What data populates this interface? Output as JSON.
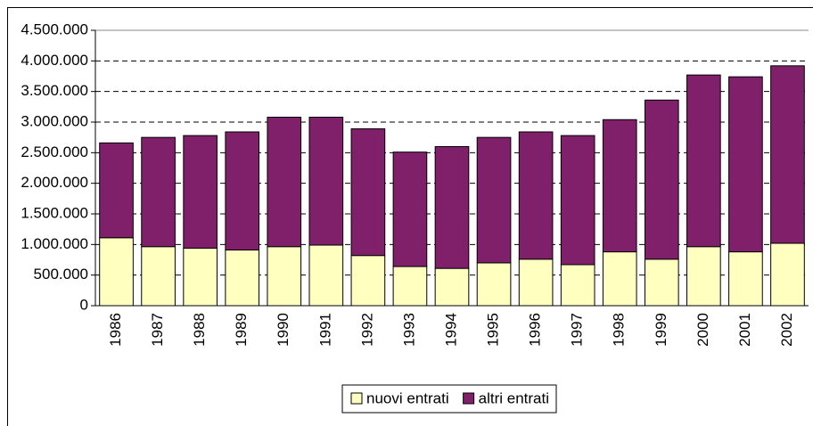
{
  "chart_data": {
    "type": "stacked_bar",
    "categories": [
      "1986",
      "1987",
      "1988",
      "1989",
      "1990",
      "1991",
      "1992",
      "1993",
      "1994",
      "1995",
      "1996",
      "1997",
      "1998",
      "1999",
      "2000",
      "2001",
      "2002"
    ],
    "series": [
      {
        "name": "nuovi entrati",
        "color": "#ffffc0",
        "values": [
          1110000,
          965000,
          940000,
          910000,
          965000,
          990000,
          820000,
          640000,
          610000,
          700000,
          760000,
          670000,
          880000,
          760000,
          965000,
          880000,
          1020000
        ]
      },
      {
        "name": "altri entrati",
        "color": "#80206a",
        "values": [
          1550000,
          1785000,
          1840000,
          1930000,
          2115000,
          2090000,
          2070000,
          1870000,
          1990000,
          2050000,
          2080000,
          2110000,
          2160000,
          2600000,
          2805000,
          2860000,
          2900000
        ]
      }
    ],
    "ylim": [
      0,
      4500000
    ],
    "yticks": [
      0,
      {
        "value": 500000,
        "label": "500.000"
      },
      {
        "value": 1000000,
        "label": "1.000.000"
      },
      {
        "value": 1500000,
        "label": "1.500.000"
      },
      {
        "value": 2000000,
        "label": "2.000.000"
      },
      {
        "value": 2500000,
        "label": "2.500.000"
      },
      {
        "value": 3000000,
        "label": "3.000.000"
      },
      {
        "value": 3500000,
        "label": "3.500.000"
      },
      {
        "value": 4000000,
        "label": "4.000.000"
      },
      {
        "value": 4500000,
        "label": "4.500.000"
      }
    ],
    "grid": true,
    "legend": "bottom"
  }
}
